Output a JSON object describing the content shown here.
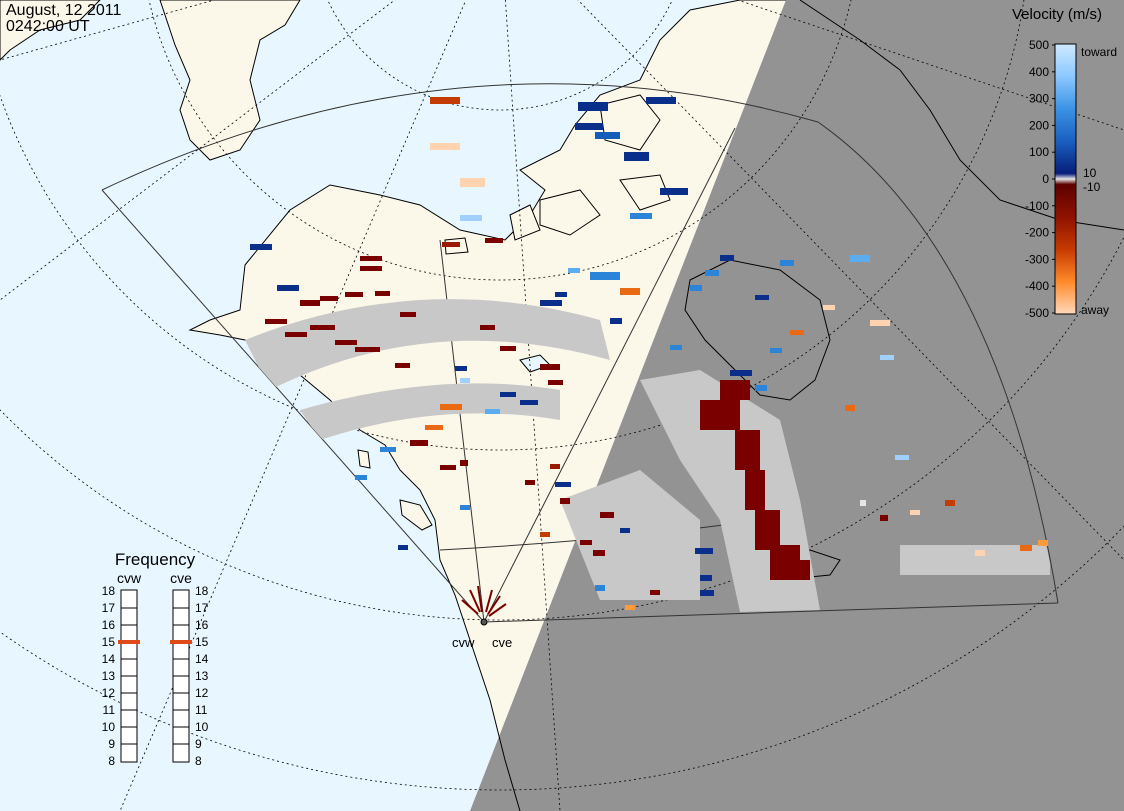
{
  "header": {
    "date": "August, 12 2011",
    "time": "0242:00 UT"
  },
  "colorbar": {
    "title": "Velocity (m/s)",
    "ticks": [
      "500",
      "400",
      "300",
      "200",
      "100",
      "0",
      "-100",
      "-200",
      "-300",
      "-400",
      "-500"
    ],
    "inner_ticks": [
      "10",
      "-10"
    ],
    "end_labels": {
      "top": "toward",
      "bottom": "away"
    },
    "colors": [
      "#cfe9ff",
      "#9fd0ff",
      "#5aaef0",
      "#2c84d8",
      "#155cb8",
      "#0a2f8a",
      "#e6e6e6",
      "#7a0000",
      "#9a1a00",
      "#c43c00",
      "#ea6a14",
      "#ff9a3c",
      "#ffd2b0"
    ]
  },
  "frequency": {
    "title": "Frequency",
    "radars": [
      "cvw",
      "cve"
    ],
    "levels": [
      "18",
      "17",
      "16",
      "15",
      "14",
      "13",
      "12",
      "11",
      "10",
      "9",
      "8"
    ],
    "selected": {
      "cvw": 15,
      "cve": 15
    }
  },
  "radar_sites": [
    {
      "name": "cvw",
      "label": "cvw"
    },
    {
      "name": "cve",
      "label": "cve"
    }
  ],
  "colors": {
    "ocean": "#e8f6ff",
    "land": "#fbf8ea",
    "night": "#939393",
    "ground_scatter": "#c8c8c8"
  }
}
